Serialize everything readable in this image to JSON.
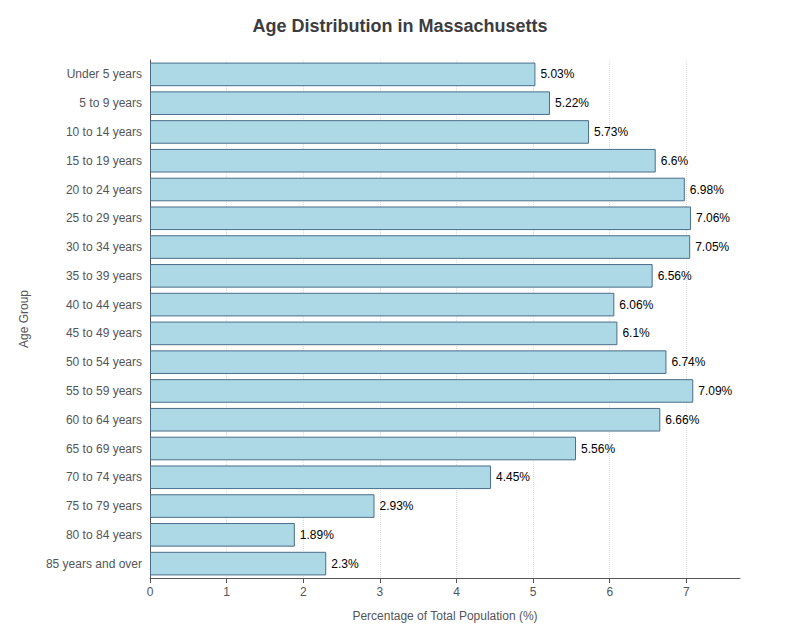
{
  "chart_data": {
    "type": "bar",
    "orientation": "horizontal",
    "title": "Age Distribution in Massachusetts",
    "xlabel": "Percentage of Total Population (%)",
    "ylabel": "Age Group",
    "categories": [
      "Under 5 years",
      "5 to 9 years",
      "10 to 14 years",
      "15 to 19 years",
      "20 to 24 years",
      "25 to 29 years",
      "30 to 34 years",
      "35 to 39 years",
      "40 to 44 years",
      "45 to 49 years",
      "50 to 54 years",
      "55 to 59 years",
      "60 to 64 years",
      "65 to 69 years",
      "70 to 74 years",
      "75 to 79 years",
      "80 to 84 years",
      "85 years and over"
    ],
    "values": [
      5.03,
      5.22,
      5.73,
      6.6,
      6.98,
      7.06,
      7.05,
      6.56,
      6.06,
      6.1,
      6.74,
      7.09,
      6.66,
      5.56,
      4.45,
      2.93,
      1.89,
      2.3
    ],
    "value_labels": [
      "5.03%",
      "5.22%",
      "5.73%",
      "6.6%",
      "6.98%",
      "7.06%",
      "7.05%",
      "6.56%",
      "6.06%",
      "6.1%",
      "6.74%",
      "7.09%",
      "6.66%",
      "5.56%",
      "4.45%",
      "2.93%",
      "1.89%",
      "2.3%"
    ],
    "data_labels": true,
    "color": "#ADD8E6",
    "xlim": [
      0,
      7.7
    ],
    "xticks": [
      0,
      1,
      2,
      3,
      4,
      5,
      6,
      7
    ],
    "grid": true
  }
}
